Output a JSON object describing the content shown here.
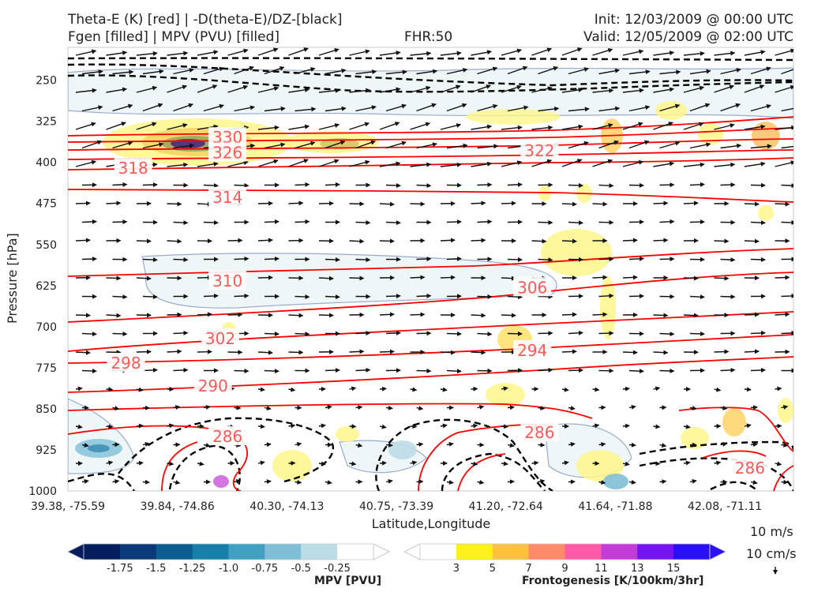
{
  "header": {
    "title_line1": "Theta-E (K) [red] | -D(theta-E)/DZ-[black]",
    "title_line2": "Fgen [filled] | MPV (PVU) [filled]",
    "fhr": "FHR:50",
    "init": "Init: 12/03/2009 @ 00:00 UTC",
    "valid": "Valid: 12/05/2009 @ 02:00 UTC"
  },
  "vector_key": {
    "horizontal": "10 m/s",
    "vertical": "10 cm/s"
  },
  "colors": {
    "theta_e": "#ff0000",
    "ddz": "#000000",
    "mpv_outline": "#9aaad0"
  },
  "chart_data": {
    "type": "contour",
    "title": "",
    "xlabel": "Latitude,Longitude",
    "ylabel": "Pressure [hPa]",
    "x_ticks": [
      "39.38, -75.59",
      "39.84, -74.86",
      "40.30, -74.13",
      "40.75, -73.39",
      "41.20, -72.64",
      "41.64, -71.88",
      "42.08, -71.11"
    ],
    "y_ticks": [
      250,
      325,
      400,
      475,
      550,
      625,
      700,
      775,
      850,
      925,
      1000
    ],
    "y_range": [
      190,
      1000
    ],
    "y_inverted": true,
    "theta_e_labels": [
      {
        "value": 330,
        "x_frac": 0.22,
        "p": 356
      },
      {
        "value": 326,
        "x_frac": 0.22,
        "p": 384
      },
      {
        "value": 322,
        "x_frac": 0.65,
        "p": 380
      },
      {
        "value": 318,
        "x_frac": 0.09,
        "p": 412
      },
      {
        "value": 314,
        "x_frac": 0.22,
        "p": 465
      },
      {
        "value": 310,
        "x_frac": 0.22,
        "p": 618
      },
      {
        "value": 306,
        "x_frac": 0.64,
        "p": 630
      },
      {
        "value": 302,
        "x_frac": 0.21,
        "p": 723
      },
      {
        "value": 298,
        "x_frac": 0.08,
        "p": 768
      },
      {
        "value": 294,
        "x_frac": 0.64,
        "p": 745
      },
      {
        "value": 290,
        "x_frac": 0.2,
        "p": 810
      },
      {
        "value": 286,
        "x_frac": 0.22,
        "p": 902
      },
      {
        "value": 286,
        "x_frac": 0.65,
        "p": 895
      },
      {
        "value": 286,
        "x_frac": 0.94,
        "p": 960
      }
    ],
    "mpv_colorbar": {
      "label": "MPV [PVU]",
      "ticks": [
        "-1.75",
        "-1.5",
        "-1.25",
        "-1.0",
        "-0.75",
        "-0.5",
        "-0.25"
      ],
      "colors": [
        "#041e5e",
        "#0a3a7a",
        "#0b5c8f",
        "#1880a8",
        "#42a0c2",
        "#7fbfd6",
        "#bcdde7",
        "#ffffff"
      ]
    },
    "fgen_colorbar": {
      "label": "Frontogenesis [K/100km/3hr]",
      "ticks": [
        "3",
        "5",
        "7",
        "9",
        "11",
        "13",
        "15"
      ],
      "colors": [
        "#ffffff",
        "#fff21a",
        "#ffc13f",
        "#ff8b6a",
        "#ff5aa8",
        "#c23cd6",
        "#7514f0",
        "#2a10f5"
      ]
    }
  }
}
